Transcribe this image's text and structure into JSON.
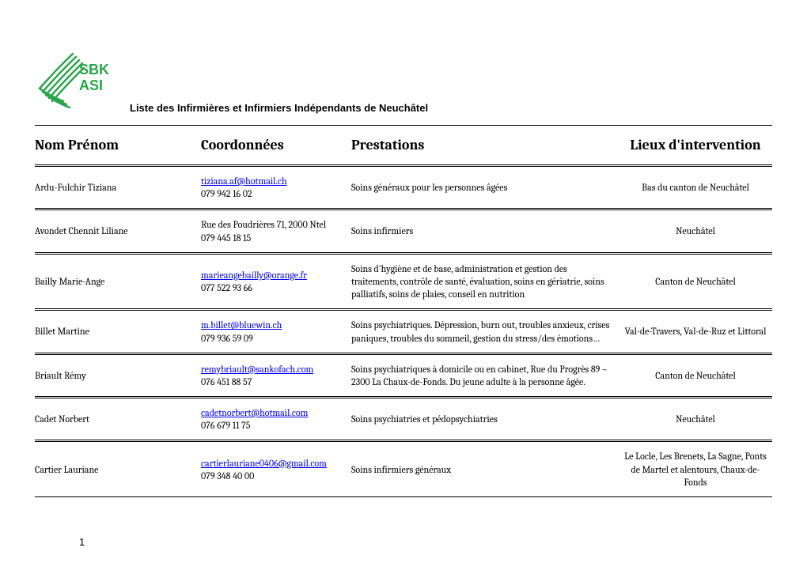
{
  "subtitle": "Liste des Infirmières et Infirmiers Indépendants de Neuchâtel",
  "page_number": "1",
  "logo": {
    "text_top": "SBK",
    "text_bottom": "ASI",
    "stroke_color": "#2aa54a",
    "text_color": "#2aa54a"
  },
  "columns": {
    "name": "Nom Prénom",
    "coord": "Coordonnées",
    "prest": "Prestations",
    "lieu": "Lieux d'intervention"
  },
  "rows": [
    {
      "name": "Ardu-Fulchir Tiziana",
      "email": "tiziana.af@hotmail.ch",
      "contact": "079 942 16 02",
      "prest": "Soins généraux pour les personnes âgées",
      "lieu": "Bas du canton de Neuchâtel"
    },
    {
      "name": "Avondet Chennit Liliane",
      "email": "",
      "contact": "Rue des Poudrières 71, 2000 Ntel\n079 445 18 15",
      "prest": "Soins infirmiers",
      "lieu": "Neuchâtel"
    },
    {
      "name": "Bailly Marie-Ange",
      "email": "marieangebailly@orange.fr",
      "contact": "077 522 93 66",
      "prest": "Soins d'hygiène et de base, administration et gestion des traitements, contrôle de santé, évaluation, soins en gériatrie, soins palliatifs, soins de plaies, conseil en nutrition",
      "lieu": "Canton de Neuchâtel"
    },
    {
      "name": "Billet Martine",
      "email": "m.billet@bluewin.ch",
      "contact": "079 936 59 09",
      "prest": "Soins psychiatriques. Dépression, burn out, troubles anxieux, crises paniques, troubles du sommeil, gestion du stress/des émotions…",
      "lieu": "Val-de-Travers, Val-de-Ruz et Littoral"
    },
    {
      "name": "Briault Rémy",
      "email": "remybriault@sankofach.com",
      "contact": "076 451 88 57",
      "prest": "Soins psychiatriques à domicile ou en cabinet, Rue du Progrès 89 – 2300 La Chaux-de-Fonds. Du jeune adulte à la personne âgée.",
      "lieu": "Canton de Neuchâtel"
    },
    {
      "name": "Cadet Norbert",
      "email": "cadetnorbert@hotmail.com",
      "contact": "076 679 11 75",
      "prest": "Soins psychiatries et pédopsychiatries",
      "lieu": "Neuchâtel"
    },
    {
      "name": "Cartier Lauriane",
      "email": "cartierlauriane0406@gmail.com",
      "contact": "079 348 40 00",
      "prest": "Soins infirmiers généraux",
      "lieu": "Le Locle, Les Brenets, La Sagne, Ponts de Martel et alentours, Chaux-de-Fonds"
    }
  ],
  "colors": {
    "link": "#0000ee",
    "border": "#000000",
    "background": "#ffffff"
  }
}
